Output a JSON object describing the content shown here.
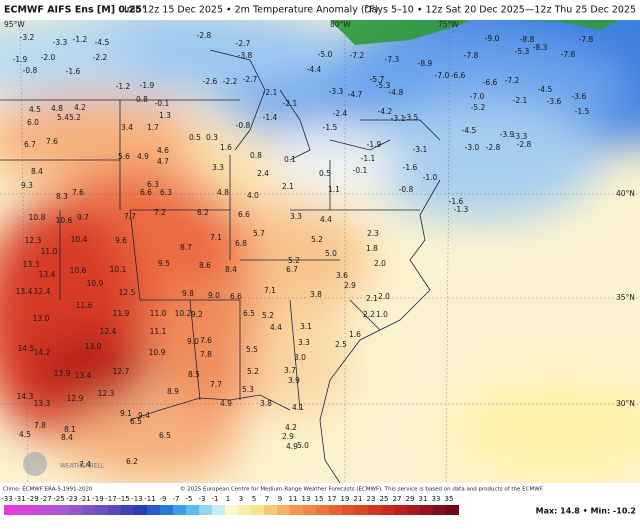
{
  "header": {
    "title": "ECMWF AIFS Ens [M] 0.25°",
    "init": "Init 12z 15 Dec 2025 • 2m Temperature Anomaly (°F)",
    "period": "Days 5–10 • 12z Sat 20 Dec 2025—12z Thu 25 Dec 2025"
  },
  "map": {
    "coords": [
      "95°W",
      "80°W",
      "75°W",
      "40°N",
      "35°N",
      "30°N"
    ],
    "watermark": "WEATHERBELL",
    "labels": [
      "-3.2",
      "-3.3",
      "-1.2",
      "-4.5",
      "-1.9",
      "-2.0",
      "-2.2",
      "-0.8",
      "-1.6",
      "-2.8",
      "-2.7",
      "-3.8",
      "-2.6",
      "-2.2",
      "-2.7",
      "-1.2",
      "-1.9",
      "-0.1",
      "1.3",
      "0.8",
      "4.5",
      "4.8",
      "4.2",
      "5.4",
      "5.2",
      "6.0",
      "3.4",
      "1.7",
      "7.6",
      "6.7",
      "5.6",
      "4.9",
      "4.6",
      "4.7",
      "0.5",
      "0.3",
      "1.6",
      "0.8",
      "-0.8",
      "-2.1",
      "-1.4",
      "0.5",
      "0.1",
      "3.3",
      "2.4",
      "9.3",
      "8.4",
      "8.3",
      "7.6",
      "6.3",
      "6.6",
      "6.3",
      "4.8",
      "4.0",
      "2.1",
      "1.1",
      "10.8",
      "10.6",
      "9.7",
      "7.7",
      "7.2",
      "6.2",
      "6.6",
      "3.3",
      "4.4",
      "12.3",
      "11.0",
      "10.4",
      "9.6",
      "8.7",
      "7.1",
      "6.8",
      "5.7",
      "5.2",
      "2.3",
      "13.3",
      "10.6",
      "10.1",
      "9.5",
      "8.6",
      "8.4",
      "6.7",
      "5.2",
      "1.8",
      "13.4",
      "10.9",
      "12.5",
      "5.0",
      "2.0",
      "3.6",
      "2.9",
      "13.4",
      "12.4",
      "9.8",
      "9.0",
      "6.6",
      "7.1",
      "3.8",
      "2.1",
      "2.0",
      "11.6",
      "11.9",
      "11.0",
      "10.2",
      "9.2",
      "6.5",
      "5.2",
      "2.2",
      "1.0",
      "13.0",
      "12.4",
      "11.1",
      "4.4",
      "3.1",
      "1.6",
      "9.0",
      "7.6",
      "13.0",
      "14.5",
      "14.2",
      "10.9",
      "7.8",
      "5.5",
      "3.3",
      "2.5",
      "3.0",
      "12.7",
      "8.5",
      "5.2",
      "3.7",
      "3.9",
      "13.9",
      "13.4",
      "14.3",
      "13.3",
      "12.9",
      "12.3",
      "8.9",
      "7.7",
      "5.3",
      "3.8",
      "4.9",
      "9.1",
      "9.4",
      "4.1",
      "8.1",
      "6.5",
      "7.8",
      "8.4",
      "6.5",
      "4.2",
      "4.9",
      "2.9",
      "5.0",
      "4.5",
      "6.2",
      "7.4",
      "-7.2",
      "-7.3",
      "-8.9",
      "-7.0",
      "-6.6",
      "-9.0",
      "-8.8",
      "-8.3",
      "-7.8",
      "-7.8",
      "-7.8",
      "-6.6",
      "-7.2",
      "-5.3",
      "-5.0",
      "-4.4",
      "-5.7",
      "-4.8",
      "-5.3",
      "-4.7",
      "-3.3",
      "-7.0",
      "-5.2",
      "-4.5",
      "-3.6",
      "-3.6",
      "-1.5",
      "-2.1",
      "-4.2",
      "-3.1",
      "-3.5",
      "-2.4",
      "-1.5",
      "-4.5",
      "-3.9",
      "-3.3",
      "-2.8",
      "-3.0",
      "-1.9",
      "-3.1",
      "-2.8",
      "-2.1",
      "-1.6",
      "-1.3",
      "-0.1",
      "-1.1",
      "-1.6",
      "-0.8",
      "-1.0"
    ]
  },
  "footer": {
    "climo": "Climo: ECMWF ERA-5 1991-2020",
    "copyright": "© 2025 European Centre for Medium-Range Weather Forecasts (ECMWF). This service is based on data and products of the ECMWF.",
    "extremes": "Max: 14.8 • Min: -10.2"
  },
  "colorbar": {
    "ticks": [
      -33,
      -31,
      -29,
      -27,
      -25,
      -23,
      -21,
      -19,
      -17,
      -15,
      -13,
      -11,
      -9,
      -7,
      -5,
      -3,
      -1,
      1,
      3,
      5,
      7,
      9,
      11,
      13,
      15,
      17,
      19,
      21,
      23,
      25,
      27,
      29,
      31,
      33,
      35
    ]
  }
}
